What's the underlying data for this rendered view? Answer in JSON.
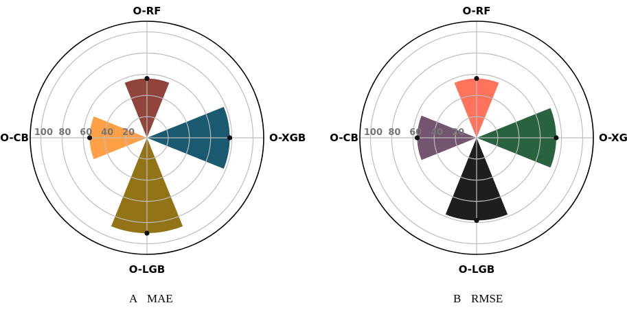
{
  "chart_data": [
    {
      "type": "polar-bar",
      "caption_letter": "A",
      "caption_metric": "MAE",
      "categories": [
        "O-RF",
        "O-XGB",
        "O-LGB",
        "O-CB"
      ],
      "values": [
        56,
        78,
        90,
        54
      ],
      "colors": [
        "#8b3a32",
        "#0d5168",
        "#8c6b08",
        "#ff9a3c"
      ],
      "rlim": [
        0,
        110
      ],
      "rticks": [
        20,
        40,
        60,
        80,
        100
      ],
      "grid": true,
      "point_markers": true
    },
    {
      "type": "polar-bar",
      "caption_letter": "B",
      "caption_metric": "RMSE",
      "categories": [
        "O-RF",
        "O-XGB",
        "O-LGB",
        "O-CB"
      ],
      "values": [
        56,
        75,
        78,
        56
      ],
      "colors": [
        "#ff6a52",
        "#1c5a34",
        "#121212",
        "#6b4c67"
      ],
      "rlim": [
        0,
        110
      ],
      "rticks": [
        20,
        40,
        60,
        80,
        100
      ],
      "grid": true,
      "point_markers": true
    }
  ]
}
